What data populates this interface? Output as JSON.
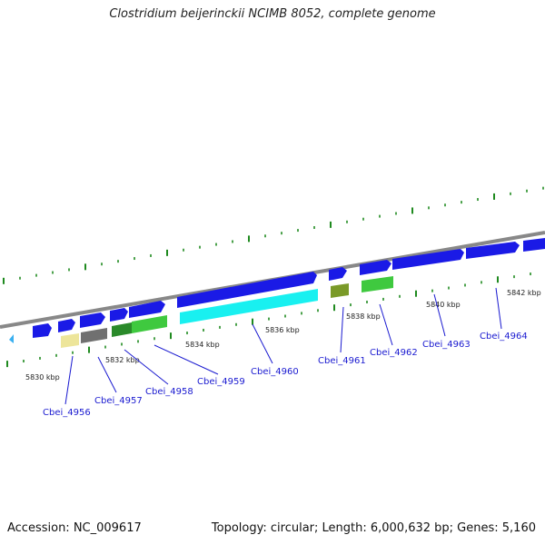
{
  "title": "Clostridium beijerinckii NCIMB 8052, complete genome",
  "footer": {
    "accession": "Accession: NC_009617",
    "summary": "Topology: circular; Length: 6,000,632 bp; Genes: 5,160"
  },
  "scale_labels": [
    "5830 kbp",
    "5832 kbp",
    "5834 kbp",
    "5836 kbp",
    "5838 kbp",
    "5840 kbp",
    "5842 kbp"
  ],
  "gene_labels": [
    "Cbei_4956",
    "Cbei_4957",
    "Cbei_4958",
    "Cbei_4959",
    "Cbei_4960",
    "Cbei_4961",
    "Cbei_4962",
    "Cbei_4963",
    "Cbei_4964"
  ],
  "colors": {
    "forward_gene": "#1a1ae6",
    "backbone": "#888888",
    "tick": "#1f8a1f",
    "label_text": "#1a1ad0",
    "cds_cyan": "#19f0f0",
    "cds_green": "#3fc93f",
    "cds_dark_green": "#2a8a2a",
    "cds_olive": "#7a9a28",
    "cds_gray": "#707070",
    "cds_khaki": "#ede59a",
    "cds_light_blue": "#3ab0f0"
  }
}
